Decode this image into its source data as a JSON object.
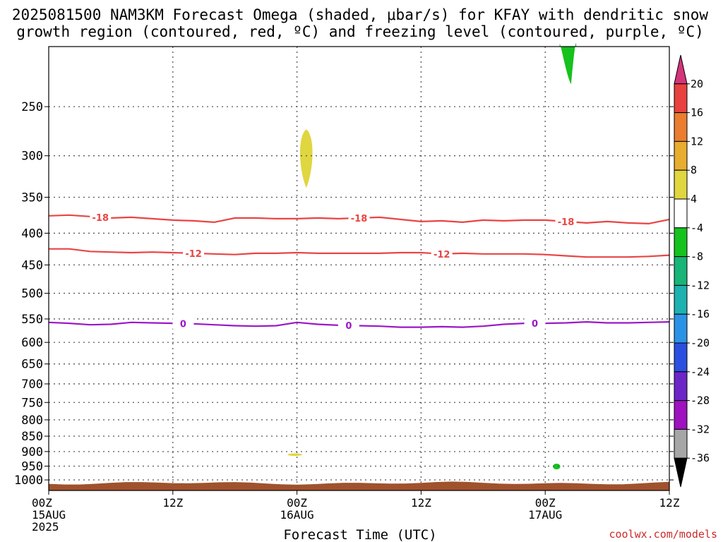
{
  "chart_data": {
    "type": "contour",
    "title_lines": [
      "2025081500 NAM3KM Forecast Omega (shaded, μbar/s) for KFAY with dendritic snow",
      "growth region (contoured, red, ºC) and freezing level (contoured, purple, ºC)"
    ],
    "xlabel": "Forecast Time (UTC)",
    "credit": "coolwx.com/models",
    "x_unit": "hours since 2025-08-15 00Z",
    "xlim": [
      0,
      60
    ],
    "x_ticks": [
      {
        "x": 0,
        "lines": [
          "00Z",
          "15AUG",
          "2025"
        ]
      },
      {
        "x": 12,
        "lines": [
          "12Z"
        ]
      },
      {
        "x": 24,
        "lines": [
          "00Z",
          "16AUG"
        ]
      },
      {
        "x": 36,
        "lines": [
          "12Z"
        ]
      },
      {
        "x": 48,
        "lines": [
          "00Z",
          "17AUG"
        ]
      },
      {
        "x": 60,
        "lines": [
          "12Z"
        ]
      }
    ],
    "y_ticks": [
      250,
      300,
      350,
      400,
      450,
      500,
      550,
      600,
      650,
      700,
      750,
      800,
      850,
      900,
      950,
      1000
    ],
    "ylim": [
      1040,
      200
    ],
    "y_scale": "log",
    "grid": true,
    "colorbar": {
      "labels": [
        "20",
        "16",
        "12",
        "8",
        "4",
        "-4",
        "-8",
        "-12",
        "-16",
        "-20",
        "-24",
        "-28",
        "-32",
        "-36"
      ],
      "colors": [
        "#d5347a",
        "#e8413f",
        "#ea7d2f",
        "#e8ac2f",
        "#e0d640",
        "#ffffff",
        "#16c21d",
        "#17b577",
        "#1eb1b1",
        "#2b93e6",
        "#2b4fe0",
        "#6c26c8",
        "#9e12c0",
        "#a6a6a6",
        "#000000"
      ]
    },
    "contours": [
      {
        "label": "-18",
        "color": "#ea4444",
        "x": [
          0,
          2,
          4,
          6,
          8,
          10,
          12,
          14,
          16,
          18,
          20,
          22,
          24,
          26,
          28,
          30,
          32,
          34,
          36,
          38,
          40,
          42,
          44,
          46,
          48,
          50,
          52,
          54,
          56,
          58,
          60
        ],
        "y": [
          375,
          374,
          376,
          378,
          377,
          379,
          381,
          382,
          384,
          378,
          378,
          379,
          379,
          378,
          379,
          378,
          377,
          380,
          383,
          382,
          384,
          381,
          382,
          381,
          381,
          383,
          385,
          383,
          385,
          386,
          380
        ],
        "label_x": [
          5,
          30,
          50
        ]
      },
      {
        "label": "-12",
        "color": "#ea4444",
        "x": [
          0,
          2,
          4,
          6,
          8,
          10,
          12,
          14,
          16,
          18,
          20,
          22,
          24,
          26,
          28,
          30,
          32,
          34,
          36,
          38,
          40,
          42,
          44,
          46,
          48,
          50,
          52,
          54,
          56,
          58,
          60
        ],
        "y": [
          424,
          424,
          428,
          429,
          430,
          429,
          430,
          431,
          432,
          433,
          431,
          431,
          430,
          431,
          431,
          431,
          431,
          430,
          430,
          432,
          431,
          432,
          432,
          432,
          433,
          435,
          437,
          437,
          437,
          436,
          434
        ],
        "label_x": [
          14,
          38
        ]
      },
      {
        "label": "0",
        "color": "#9a18c9",
        "x": [
          0,
          2,
          4,
          6,
          8,
          10,
          12,
          14,
          16,
          18,
          20,
          22,
          24,
          26,
          28,
          30,
          32,
          34,
          36,
          38,
          40,
          42,
          44,
          46,
          48,
          50,
          52,
          54,
          56,
          58,
          60
        ],
        "y": [
          557,
          559,
          562,
          561,
          557,
          558,
          559,
          560,
          562,
          564,
          565,
          564,
          557,
          561,
          563,
          564,
          565,
          567,
          567,
          566,
          567,
          565,
          561,
          559,
          559,
          558,
          556,
          558,
          558,
          557,
          556
        ],
        "label_x": [
          13,
          29,
          47
        ]
      }
    ],
    "shaded": [
      {
        "value_range": [
          4,
          8
        ],
        "color": "#e0d640",
        "cx": 24.9,
        "cy": 305,
        "rx": 0.55,
        "ry_top": 272,
        "ry_bot": 338,
        "shape": "lens"
      },
      {
        "value_range": [
          -8,
          -4
        ],
        "color": "#16c21d",
        "cx": 50.2,
        "cy": 215,
        "rx": 0.8,
        "ry_top": 185,
        "ry_bot": 230,
        "shape": "drop"
      },
      {
        "value_range": [
          4,
          8
        ],
        "color": "#e0d640",
        "cx": 23.8,
        "cy": 910,
        "rx": 0.7,
        "ry_top": 905,
        "ry_bot": 916,
        "shape": "blob"
      },
      {
        "value_range": [
          -8,
          -4
        ],
        "color": "#16c21d",
        "cx": 49.1,
        "cy": 952,
        "rx": 0.35,
        "ry_top": 938,
        "ry_bot": 965,
        "shape": "blob"
      }
    ],
    "terrain": {
      "color": "#a0522d",
      "top_pressure": 1012
    }
  }
}
